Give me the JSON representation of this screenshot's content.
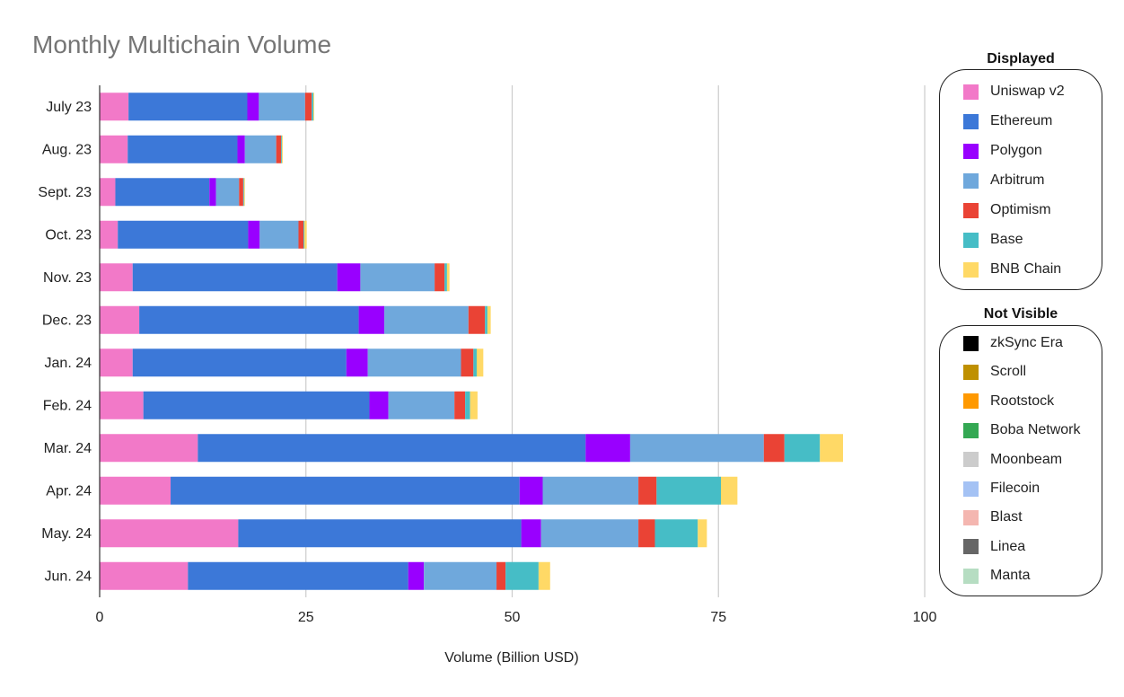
{
  "chart_data": {
    "type": "bar",
    "orientation": "horizontal",
    "stacked": true,
    "title": "Monthly Multichain Volume",
    "xlabel": "Volume (Billion USD)",
    "ylabel": "",
    "xlim": [
      0,
      100
    ],
    "xticks": [
      0,
      25,
      50,
      75,
      100
    ],
    "grid": "vertical",
    "legend_position": "right",
    "categories": [
      "July 23",
      "Aug. 23",
      "Sept. 23",
      "Oct. 23",
      "Nov. 23",
      "Dec. 23",
      "Jan. 24",
      "Feb. 24",
      "Mar. 24",
      "Apr. 24",
      "May. 24",
      "Jun. 24"
    ],
    "series": [
      {
        "name": "Uniswap v2",
        "color": "#F279C8",
        "values": [
          3.5,
          3.4,
          1.9,
          2.2,
          4.0,
          4.8,
          4.0,
          5.3,
          11.9,
          8.6,
          16.8,
          10.7
        ]
      },
      {
        "name": "Ethereum",
        "color": "#3C78D8",
        "values": [
          14.4,
          13.3,
          11.4,
          15.8,
          24.8,
          26.6,
          25.9,
          27.4,
          47.0,
          42.3,
          34.3,
          26.7
        ]
      },
      {
        "name": "Polygon",
        "color": "#9900FF",
        "values": [
          1.4,
          0.9,
          0.8,
          1.4,
          2.8,
          3.1,
          2.6,
          2.3,
          5.4,
          2.8,
          2.4,
          1.9
        ]
      },
      {
        "name": "Arbitrum",
        "color": "#6FA8DC",
        "values": [
          5.6,
          3.8,
          2.8,
          4.7,
          9.0,
          10.2,
          11.3,
          8.0,
          16.2,
          11.6,
          11.8,
          8.8
        ]
      },
      {
        "name": "Optimism",
        "color": "#EA4335",
        "values": [
          0.8,
          0.6,
          0.5,
          0.6,
          1.2,
          2.0,
          1.5,
          1.3,
          2.5,
          2.2,
          2.0,
          1.1
        ]
      },
      {
        "name": "Base",
        "color": "#46BDC6",
        "values": [
          0.2,
          0.1,
          0.1,
          0.1,
          0.3,
          0.3,
          0.4,
          0.6,
          4.3,
          7.8,
          5.2,
          4.0
        ]
      },
      {
        "name": "BNB Chain",
        "color": "#FFD966",
        "values": [
          0.1,
          0.1,
          0.1,
          0.3,
          0.3,
          0.4,
          0.8,
          0.9,
          2.8,
          2.0,
          1.1,
          1.4
        ]
      }
    ],
    "legend": {
      "displayed_heading": "Displayed",
      "displayed": [
        {
          "name": "Uniswap v2",
          "color": "#F279C8"
        },
        {
          "name": "Ethereum",
          "color": "#3C78D8"
        },
        {
          "name": "Polygon",
          "color": "#9900FF"
        },
        {
          "name": "Arbitrum",
          "color": "#6FA8DC"
        },
        {
          "name": "Optimism",
          "color": "#EA4335"
        },
        {
          "name": "Base",
          "color": "#46BDC6"
        },
        {
          "name": "BNB Chain",
          "color": "#FFD966"
        }
      ],
      "hidden_heading": "Not Visible",
      "hidden": [
        {
          "name": "zkSync Era",
          "color": "#000000"
        },
        {
          "name": "Scroll",
          "color": "#BF9000"
        },
        {
          "name": "Rootstock",
          "color": "#FF9900"
        },
        {
          "name": "Boba Network",
          "color": "#34A853"
        },
        {
          "name": "Moonbeam",
          "color": "#CCCCCC"
        },
        {
          "name": "Filecoin",
          "color": "#A4C2F4"
        },
        {
          "name": "Blast",
          "color": "#F4B6B0"
        },
        {
          "name": "Linea",
          "color": "#666666"
        },
        {
          "name": "Manta",
          "color": "#B6DDC2"
        }
      ]
    }
  }
}
